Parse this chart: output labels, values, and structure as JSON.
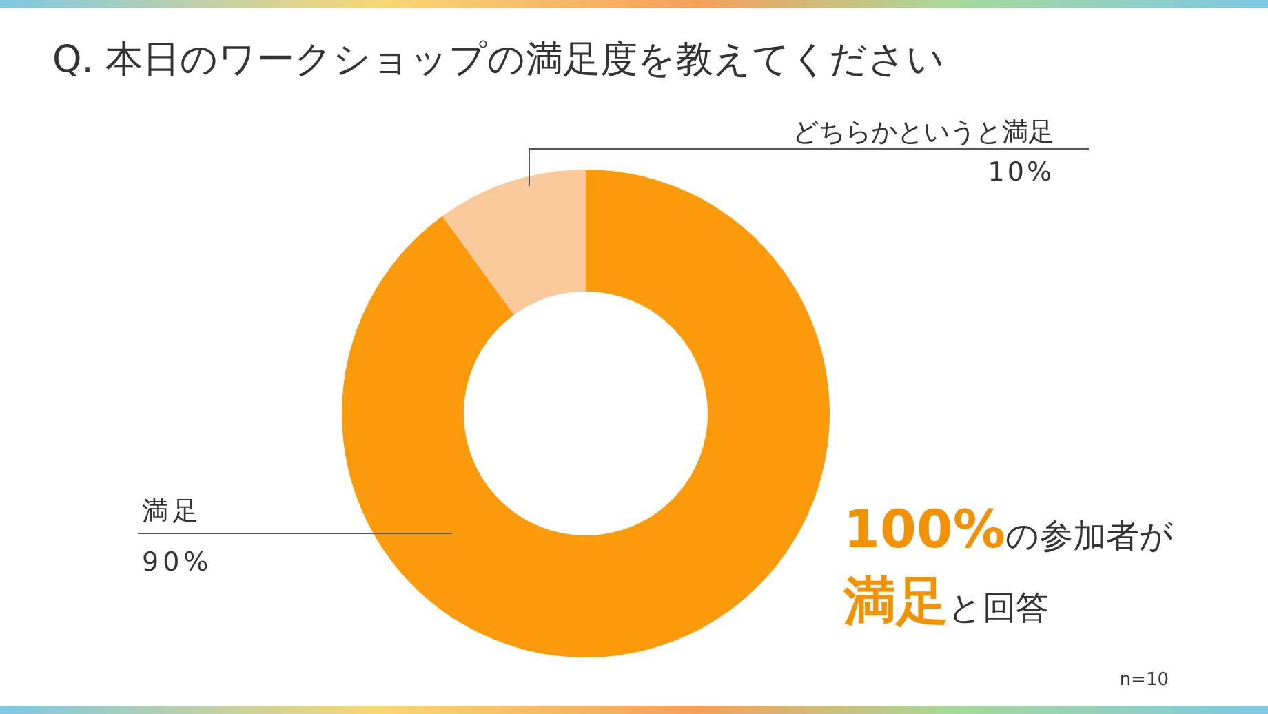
{
  "chart_data": {
    "type": "donut",
    "title": "Q. 本日のワークショップの満足度を教えてください",
    "categories": [
      "満足",
      "どちらかというと満足"
    ],
    "values": [
      90,
      10
    ],
    "value_labels": [
      "90%",
      "10%"
    ],
    "colors": [
      "#fb9a0a",
      "#f8ca9b"
    ],
    "annotations": [
      "**100%**の参加者が**満足**と回答",
      "n=10"
    ]
  }
}
